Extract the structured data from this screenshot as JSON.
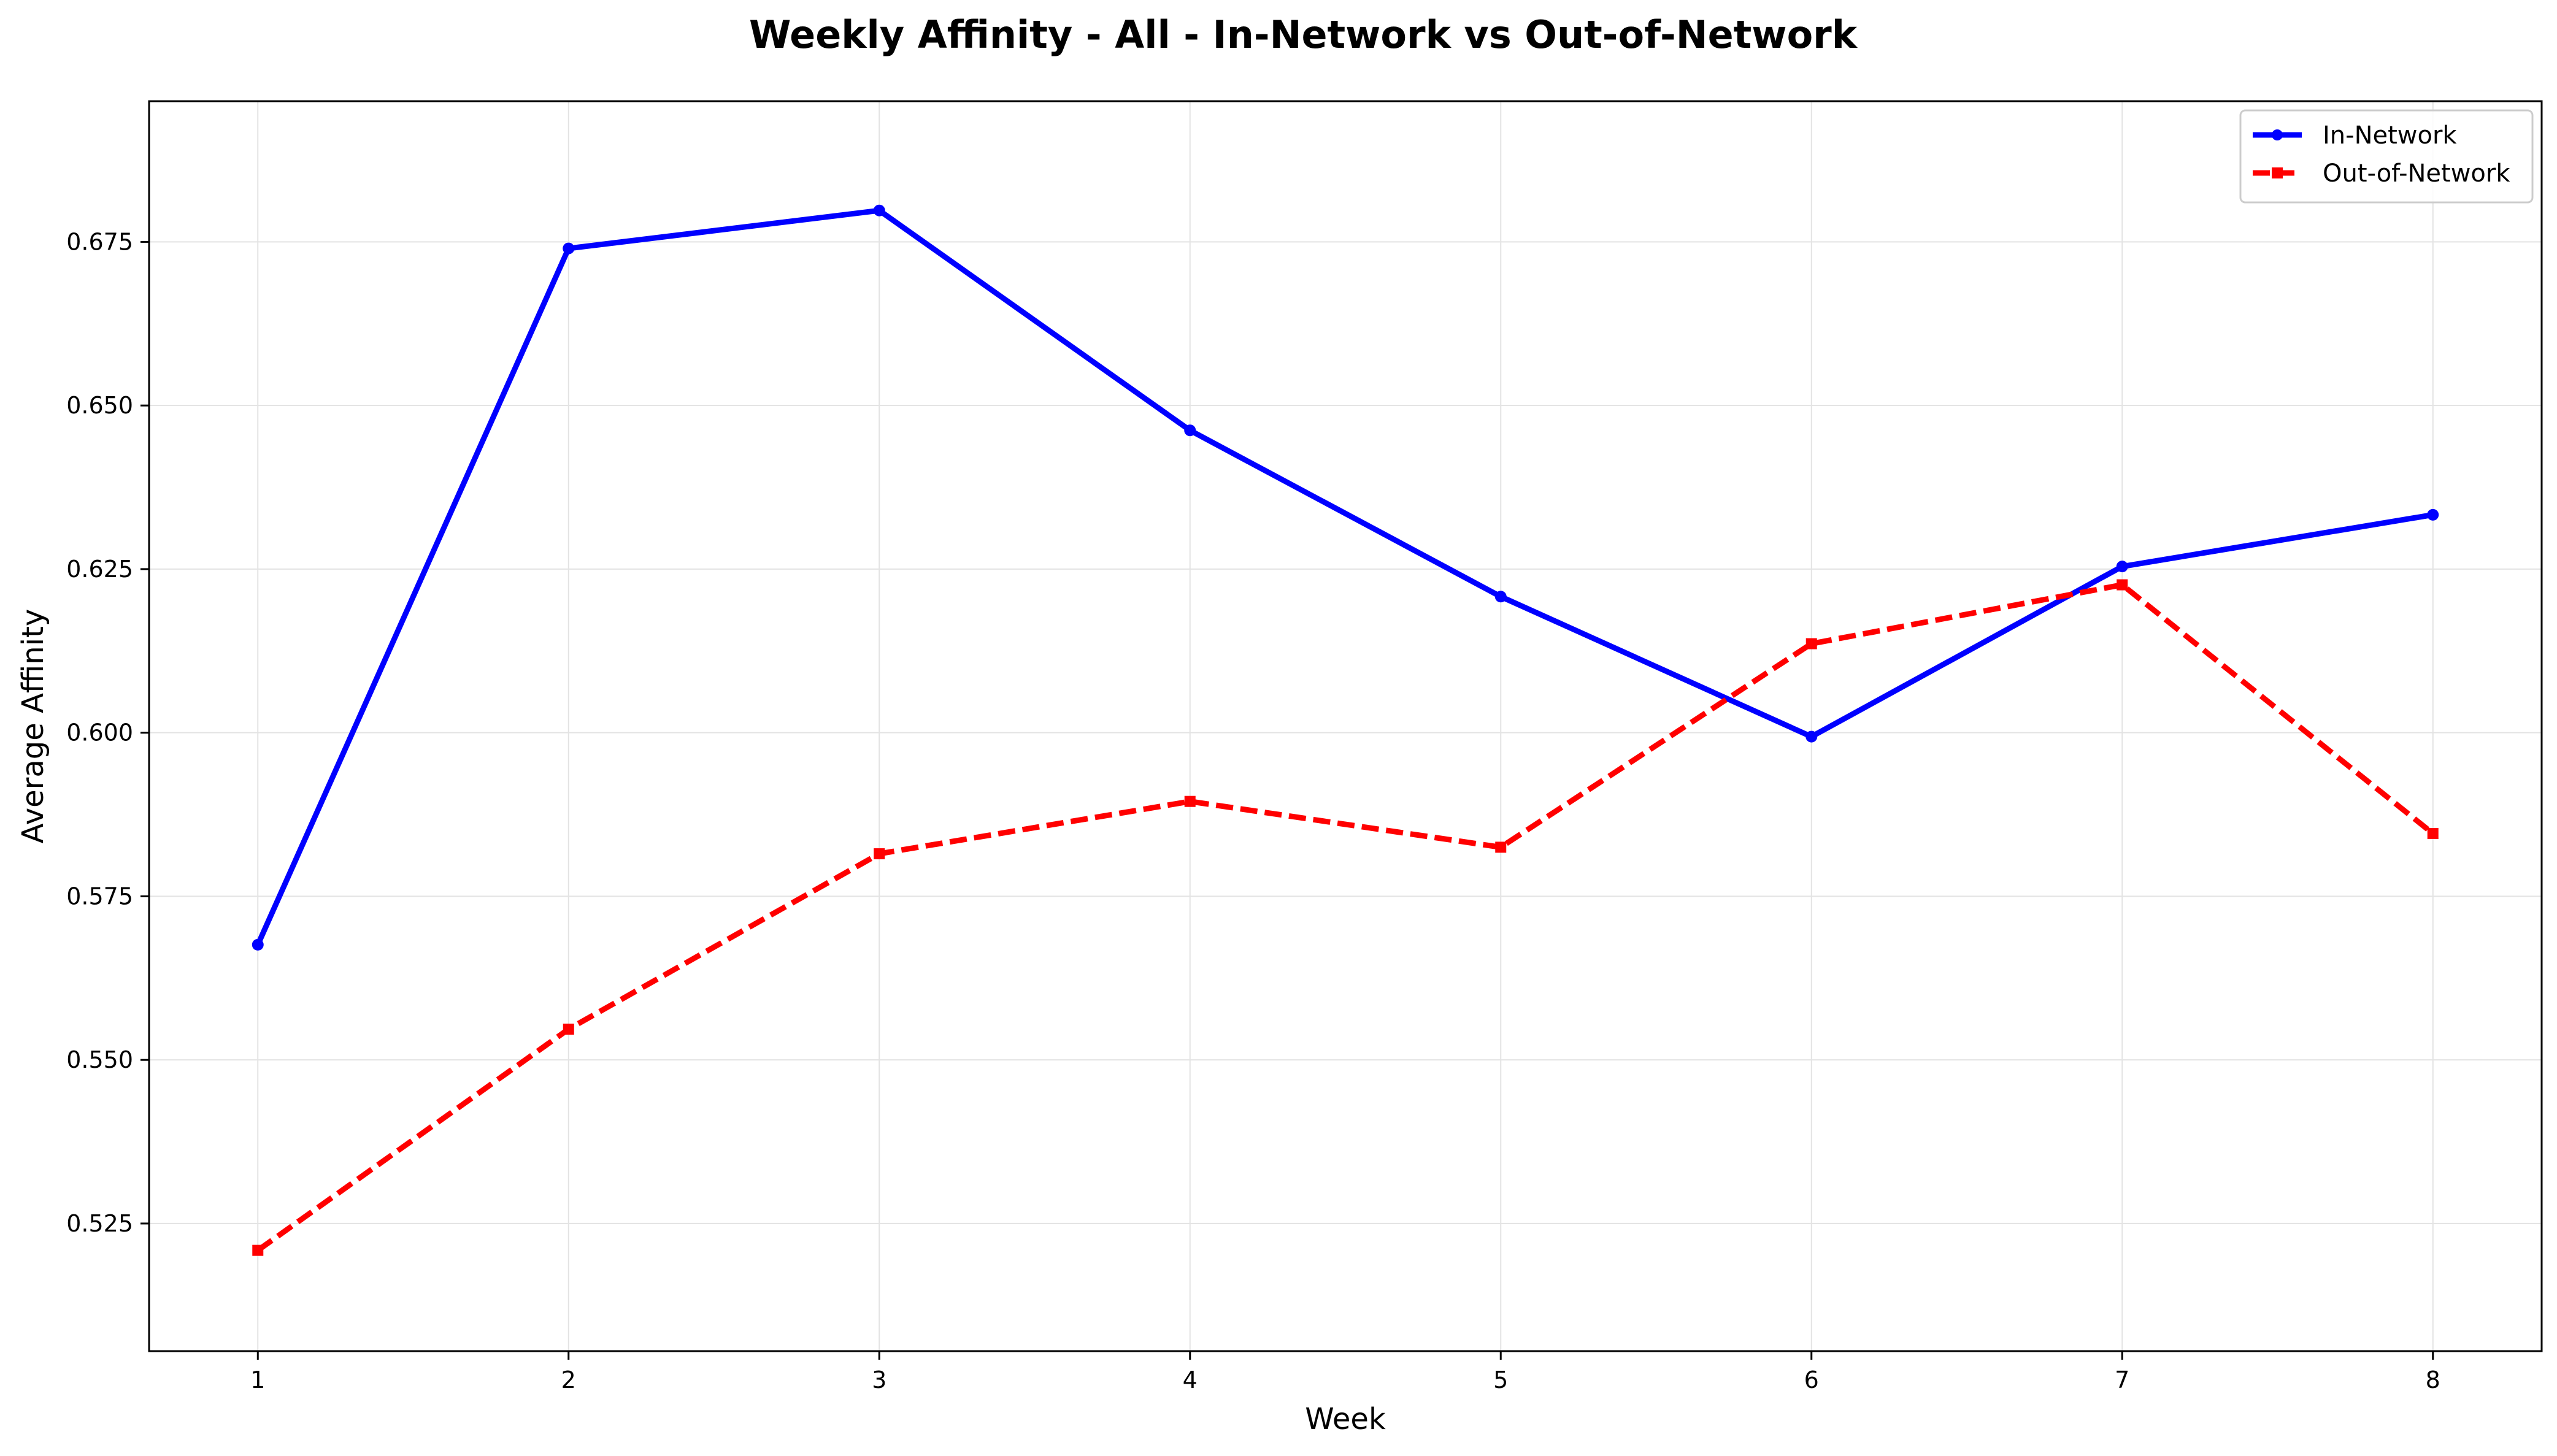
{
  "chart_data": {
    "type": "line",
    "title": "Weekly Affinity - All - In-Network vs Out-of-Network",
    "xlabel": "Week",
    "ylabel": "Average Affinity",
    "x": [
      1,
      2,
      3,
      4,
      5,
      6,
      7,
      8
    ],
    "x_ticks": [
      "1",
      "2",
      "3",
      "4",
      "5",
      "6",
      "7",
      "8"
    ],
    "xlim": [
      0.65,
      8.35
    ],
    "ylim": [
      0.5055,
      0.6965
    ],
    "y_ticks": [
      "0.525",
      "0.550",
      "0.575",
      "0.600",
      "0.625",
      "0.650",
      "0.675"
    ],
    "grid": true,
    "legend_position": "top-right",
    "series": [
      {
        "name": "In-Network",
        "values": [
          0.5676,
          0.674,
          0.6798,
          0.6462,
          0.6208,
          0.5994,
          0.6254,
          0.6333
        ],
        "color": "#0000ff",
        "line_style": "solid",
        "marker": "circle"
      },
      {
        "name": "Out-of-Network",
        "values": [
          0.5209,
          0.5547,
          0.5815,
          0.5895,
          0.5825,
          0.6136,
          0.6226,
          0.5846
        ],
        "color": "#ff0000",
        "line_style": "dashed",
        "marker": "square"
      }
    ]
  }
}
